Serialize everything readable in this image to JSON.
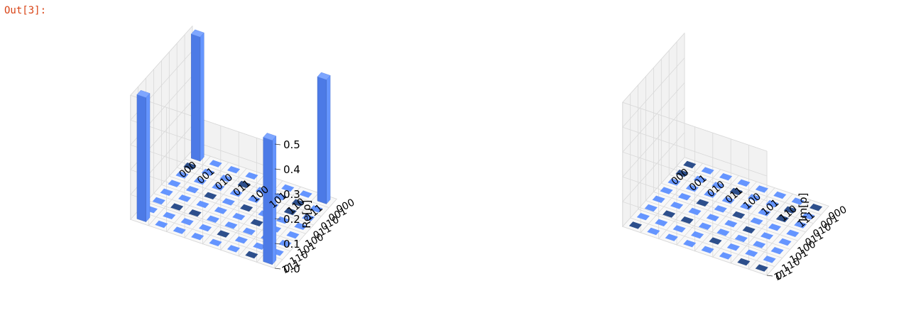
{
  "output_prompt": "Out[3]:",
  "colors": {
    "bar_front": "#6595ff",
    "bar_side": "#4c7ae6",
    "bar_top": "#7ea6ff",
    "tile_light": "#6595ff",
    "tile_dark": "#2d4f8c",
    "pane": "#f2f2f2",
    "grid": "#d9d9d9",
    "prompt": "#d84315"
  },
  "chart_data": [
    {
      "type": "bar3d",
      "title": "",
      "zlabel": "Re[ρ]",
      "zlim": [
        0,
        0.5
      ],
      "zticks": [
        "0.0",
        "0.1",
        "0.2",
        "0.3",
        "0.4",
        "0.5"
      ],
      "row_labels": [
        "000",
        "001",
        "010",
        "011",
        "100",
        "101",
        "110",
        "111"
      ],
      "col_labels": [
        "000",
        "001",
        "010",
        "011",
        "100",
        "101",
        "110",
        "111"
      ],
      "values": [
        [
          0.5,
          0,
          0,
          0,
          0,
          0,
          0,
          0.5
        ],
        [
          0,
          0,
          0,
          0,
          0,
          0,
          0,
          0
        ],
        [
          0,
          0,
          0,
          0,
          0,
          0,
          0,
          0
        ],
        [
          0,
          0,
          0,
          0,
          0,
          0,
          0,
          0
        ],
        [
          0,
          0,
          0,
          0,
          0,
          0,
          0,
          0
        ],
        [
          0,
          0,
          0,
          0,
          0,
          0,
          0,
          0
        ],
        [
          0,
          0,
          0,
          0,
          0,
          0,
          0,
          0
        ],
        [
          0.5,
          0,
          0,
          0,
          0,
          0,
          0,
          0.5
        ]
      ],
      "grid": true
    },
    {
      "type": "bar3d",
      "title": "",
      "zlabel": "Im[ρ]",
      "zticks": [
        "0"
      ],
      "row_labels": [
        "000",
        "001",
        "010",
        "011",
        "100",
        "101",
        "110",
        "111"
      ],
      "col_labels": [
        "000",
        "001",
        "010",
        "011",
        "100",
        "101",
        "110",
        "111"
      ],
      "values": [
        [
          0,
          0,
          0,
          0,
          0,
          0,
          0,
          0
        ],
        [
          0,
          0,
          0,
          0,
          0,
          0,
          0,
          0
        ],
        [
          0,
          0,
          0,
          0,
          0,
          0,
          0,
          0
        ],
        [
          0,
          0,
          0,
          0,
          0,
          0,
          0,
          0
        ],
        [
          0,
          0,
          0,
          0,
          0,
          0,
          0,
          0
        ],
        [
          0,
          0,
          0,
          0,
          0,
          0,
          0,
          0
        ],
        [
          0,
          0,
          0,
          0,
          0,
          0,
          0,
          0
        ],
        [
          0,
          0,
          0,
          0,
          0,
          0,
          0,
          0
        ]
      ],
      "grid": true
    }
  ]
}
